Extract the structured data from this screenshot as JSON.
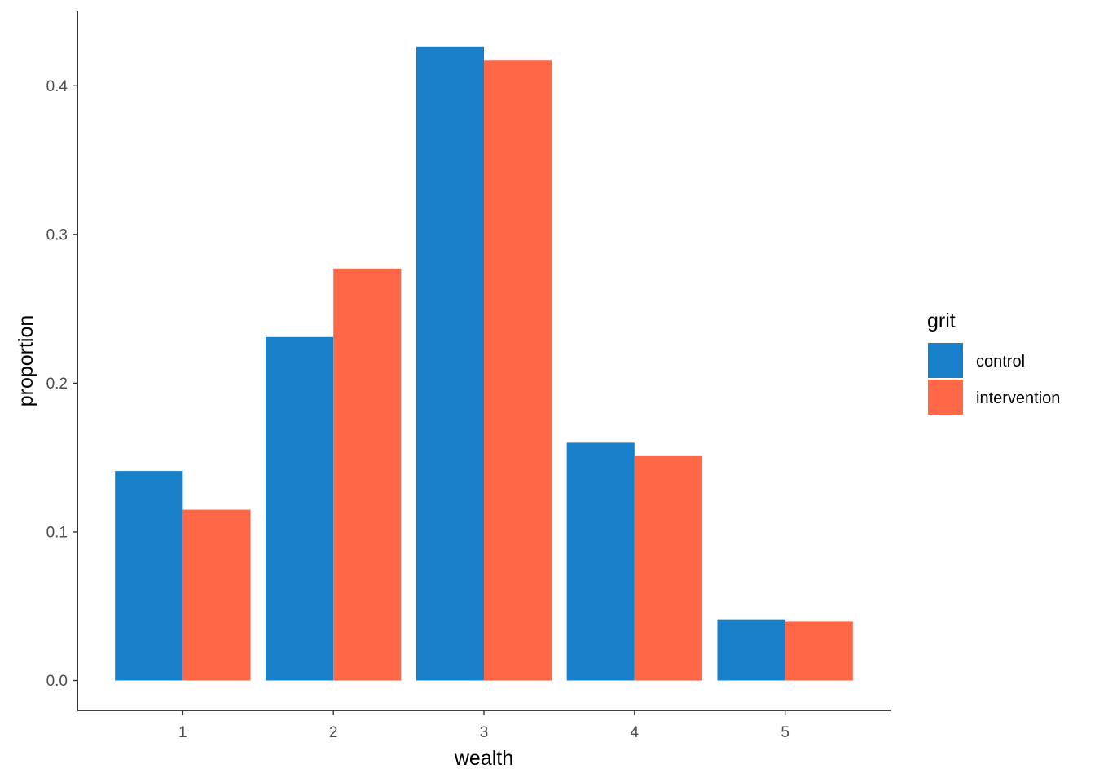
{
  "chart_data": {
    "type": "bar",
    "title": "",
    "xlabel": "wealth",
    "ylabel": "proportion",
    "categories": [
      "1",
      "2",
      "3",
      "4",
      "5"
    ],
    "series": [
      {
        "name": "control",
        "color": "#1780C8",
        "values": [
          0.141,
          0.231,
          0.426,
          0.16,
          0.041
        ]
      },
      {
        "name": "intervention",
        "color": "#FF6747",
        "values": [
          0.115,
          0.277,
          0.417,
          0.151,
          0.04
        ]
      }
    ],
    "yticks": [
      "0.0",
      "0.1",
      "0.2",
      "0.3",
      "0.4"
    ],
    "ylim": [
      -0.02,
      0.45
    ],
    "grid": false,
    "legend": {
      "title": "grit",
      "placement": "right"
    }
  }
}
